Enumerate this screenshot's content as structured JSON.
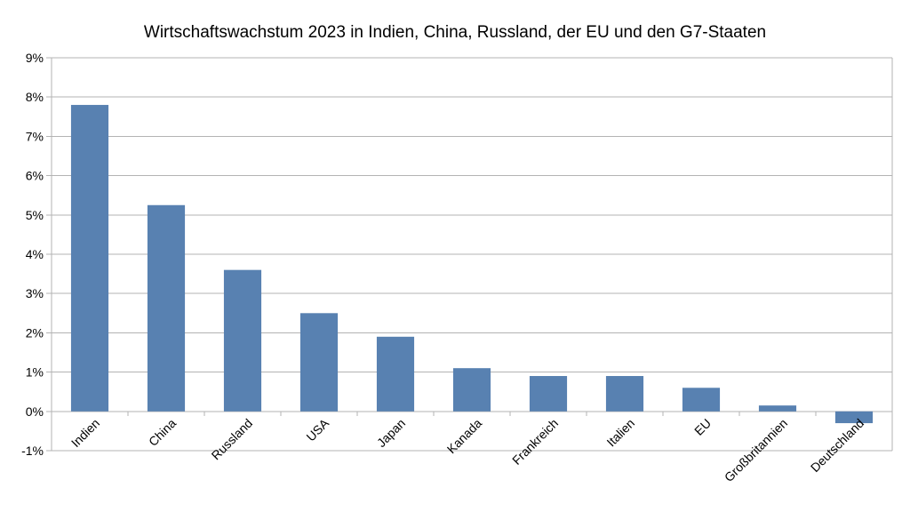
{
  "chart_data": {
    "type": "bar",
    "title": "Wirtschaftswachstum 2023 in Indien, China, Russland, der EU und den G7-Staaten",
    "xlabel": "",
    "ylabel": "",
    "categories": [
      "Indien",
      "China",
      "Russland",
      "USA",
      "Japan",
      "Kanada",
      "Frankreich",
      "Italien",
      "EU",
      "Großbritannien",
      "Deutschland"
    ],
    "values": [
      7.8,
      5.25,
      3.6,
      2.5,
      1.9,
      1.1,
      0.9,
      0.9,
      0.6,
      0.15,
      -0.3
    ],
    "ylim": [
      -1,
      9
    ],
    "yticks": [
      "-1%",
      "0%",
      "1%",
      "2%",
      "3%",
      "4%",
      "5%",
      "6%",
      "7%",
      "8%",
      "9%"
    ],
    "grid": true,
    "legend": "none",
    "bar_color": "#5881b1",
    "grid_color": "#b3b3b3"
  }
}
